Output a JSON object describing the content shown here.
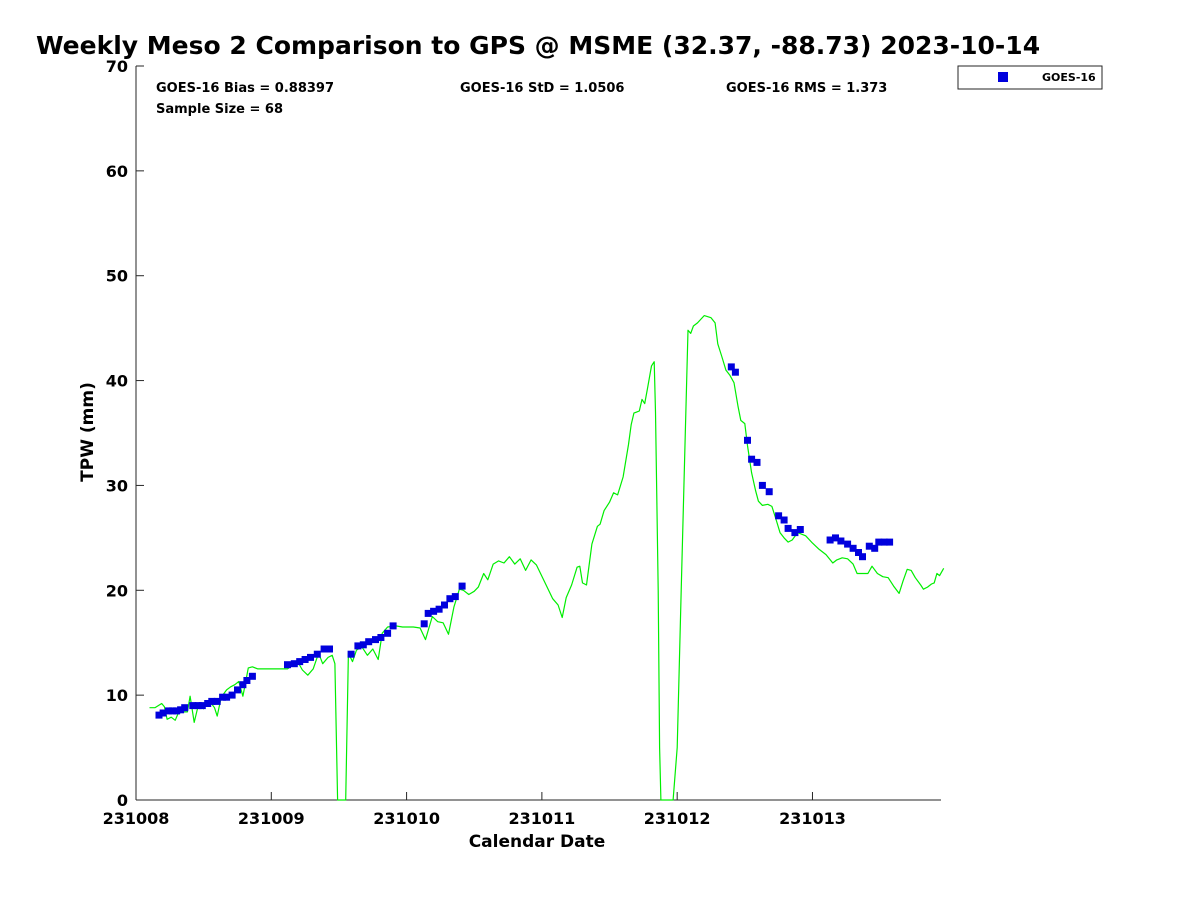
{
  "chart_data": {
    "type": "line",
    "title": "Weekly Meso 2 Comparison to GPS @ MSME (32.37, -88.73) 2023-10-14",
    "xlabel": "Calendar Date",
    "ylabel": "TPW (mm)",
    "xlim": [
      231008.0,
      231013.95
    ],
    "ylim": [
      0,
      70
    ],
    "x_ticks": [
      231008,
      231009,
      231010,
      231011,
      231012,
      231013
    ],
    "x_tick_labels": [
      "231008",
      "231009",
      "231010",
      "231011",
      "231012",
      "231013"
    ],
    "y_ticks": [
      0,
      10,
      20,
      30,
      40,
      50,
      60,
      70
    ],
    "y_tick_labels": [
      "0",
      "10",
      "20",
      "30",
      "40",
      "50",
      "60",
      "70"
    ],
    "grid": false,
    "legend_position": "top-right",
    "stats": {
      "bias": "GOES-16 Bias = 0.88397",
      "std": "GOES-16 StD = 1.0506",
      "rms": "GOES-16 RMS = 1.373",
      "sample": "Sample Size = 68"
    },
    "series": [
      {
        "name": "GOES-16",
        "kind": "scatter",
        "marker": "square",
        "color": "#0000dd",
        "points": [
          [
            231008.17,
            8.1
          ],
          [
            231008.2,
            8.3
          ],
          [
            231008.24,
            8.5
          ],
          [
            231008.27,
            8.5
          ],
          [
            231008.3,
            8.5
          ],
          [
            231008.33,
            8.6
          ],
          [
            231008.36,
            8.8
          ],
          [
            231008.42,
            9.0
          ],
          [
            231008.46,
            9.0
          ],
          [
            231008.49,
            9.0
          ],
          [
            231008.53,
            9.2
          ],
          [
            231008.56,
            9.4
          ],
          [
            231008.6,
            9.4
          ],
          [
            231008.64,
            9.8
          ],
          [
            231008.67,
            9.8
          ],
          [
            231008.71,
            10.0
          ],
          [
            231008.75,
            10.5
          ],
          [
            231008.79,
            11.0
          ],
          [
            231008.82,
            11.4
          ],
          [
            231008.86,
            11.8
          ],
          [
            231009.12,
            12.9
          ],
          [
            231009.17,
            13.0
          ],
          [
            231009.21,
            13.2
          ],
          [
            231009.25,
            13.4
          ],
          [
            231009.29,
            13.6
          ],
          [
            231009.34,
            13.9
          ],
          [
            231009.39,
            14.4
          ],
          [
            231009.43,
            14.4
          ],
          [
            231009.59,
            13.9
          ],
          [
            231009.64,
            14.7
          ],
          [
            231009.68,
            14.8
          ],
          [
            231009.72,
            15.1
          ],
          [
            231009.77,
            15.3
          ],
          [
            231009.81,
            15.5
          ],
          [
            231009.86,
            15.9
          ],
          [
            231009.9,
            16.6
          ],
          [
            231010.13,
            16.8
          ],
          [
            231010.16,
            17.8
          ],
          [
            231010.2,
            18.0
          ],
          [
            231010.24,
            18.2
          ],
          [
            231010.28,
            18.6
          ],
          [
            231010.32,
            19.2
          ],
          [
            231010.36,
            19.4
          ],
          [
            231010.41,
            20.4
          ],
          [
            231012.4,
            41.3
          ],
          [
            231012.43,
            40.8
          ],
          [
            231012.52,
            34.3
          ],
          [
            231012.55,
            32.5
          ],
          [
            231012.59,
            32.2
          ],
          [
            231012.63,
            30.0
          ],
          [
            231012.68,
            29.4
          ],
          [
            231012.75,
            27.1
          ],
          [
            231012.79,
            26.7
          ],
          [
            231012.82,
            25.9
          ],
          [
            231012.87,
            25.5
          ],
          [
            231012.91,
            25.8
          ],
          [
            231013.13,
            24.8
          ],
          [
            231013.17,
            25.0
          ],
          [
            231013.21,
            24.7
          ],
          [
            231013.26,
            24.4
          ],
          [
            231013.3,
            24.0
          ],
          [
            231013.34,
            23.6
          ],
          [
            231013.37,
            23.2
          ],
          [
            231013.42,
            24.2
          ],
          [
            231013.46,
            24.0
          ],
          [
            231013.49,
            24.6
          ],
          [
            231013.53,
            24.6
          ],
          [
            231013.57,
            24.6
          ]
        ]
      },
      {
        "name": "",
        "kind": "line",
        "color": "#00ee00",
        "points": [
          [
            231008.1,
            8.8
          ],
          [
            231008.14,
            8.8
          ],
          [
            231008.19,
            9.2
          ],
          [
            231008.21,
            8.9
          ],
          [
            231008.23,
            7.7
          ],
          [
            231008.26,
            7.9
          ],
          [
            231008.29,
            7.6
          ],
          [
            231008.31,
            8.2
          ],
          [
            231008.34,
            8.4
          ],
          [
            231008.38,
            8.4
          ],
          [
            231008.4,
            9.9
          ],
          [
            231008.43,
            7.4
          ],
          [
            231008.46,
            9.0
          ],
          [
            231008.5,
            8.7
          ],
          [
            231008.54,
            9.5
          ],
          [
            231008.58,
            8.8
          ],
          [
            231008.6,
            8.0
          ],
          [
            231008.63,
            9.8
          ],
          [
            231008.67,
            10.5
          ],
          [
            231008.7,
            10.8
          ],
          [
            231008.73,
            11.0
          ],
          [
            231008.76,
            11.3
          ],
          [
            231008.79,
            9.9
          ],
          [
            231008.83,
            12.6
          ],
          [
            231008.86,
            12.7
          ],
          [
            231008.9,
            12.5
          ],
          [
            231008.95,
            12.5
          ],
          [
            231009.0,
            12.5
          ],
          [
            231009.05,
            12.5
          ],
          [
            231009.12,
            12.5
          ],
          [
            231009.15,
            12.8
          ],
          [
            231009.19,
            13.3
          ],
          [
            231009.23,
            12.4
          ],
          [
            231009.27,
            11.9
          ],
          [
            231009.31,
            12.5
          ],
          [
            231009.35,
            14.0
          ],
          [
            231009.38,
            13.0
          ],
          [
            231009.42,
            13.6
          ],
          [
            231009.45,
            13.8
          ],
          [
            231009.47,
            13.0
          ],
          [
            231009.49,
            0
          ],
          [
            231009.55,
            0
          ],
          [
            231009.57,
            14.0
          ],
          [
            231009.6,
            13.2
          ],
          [
            231009.63,
            14.3
          ],
          [
            231009.67,
            14.6
          ],
          [
            231009.71,
            13.8
          ],
          [
            231009.75,
            14.4
          ],
          [
            231009.79,
            13.4
          ],
          [
            231009.82,
            15.9
          ],
          [
            231009.86,
            16.5
          ],
          [
            231009.92,
            16.6
          ],
          [
            231009.97,
            16.5
          ],
          [
            231010.05,
            16.5
          ],
          [
            231010.1,
            16.4
          ],
          [
            231010.14,
            15.3
          ],
          [
            231010.19,
            17.5
          ],
          [
            231010.23,
            17.0
          ],
          [
            231010.27,
            16.9
          ],
          [
            231010.31,
            15.8
          ],
          [
            231010.35,
            18.4
          ],
          [
            231010.39,
            20.1
          ],
          [
            231010.42,
            20.0
          ],
          [
            231010.46,
            19.6
          ],
          [
            231010.5,
            19.9
          ],
          [
            231010.53,
            20.3
          ],
          [
            231010.57,
            21.6
          ],
          [
            231010.6,
            21.0
          ],
          [
            231010.64,
            22.5
          ],
          [
            231010.68,
            22.8
          ],
          [
            231010.72,
            22.6
          ],
          [
            231010.76,
            23.2
          ],
          [
            231010.8,
            22.5
          ],
          [
            231010.84,
            23.0
          ],
          [
            231010.88,
            21.9
          ],
          [
            231010.92,
            22.9
          ],
          [
            231010.96,
            22.4
          ],
          [
            231011.02,
            20.8
          ],
          [
            231011.08,
            19.2
          ],
          [
            231011.12,
            18.6
          ],
          [
            231011.15,
            17.4
          ],
          [
            231011.18,
            19.3
          ],
          [
            231011.22,
            20.5
          ],
          [
            231011.26,
            22.2
          ],
          [
            231011.28,
            22.3
          ],
          [
            231011.3,
            20.7
          ],
          [
            231011.33,
            20.5
          ],
          [
            231011.37,
            24.4
          ],
          [
            231011.41,
            26.1
          ],
          [
            231011.43,
            26.3
          ],
          [
            231011.46,
            27.6
          ],
          [
            231011.5,
            28.4
          ],
          [
            231011.53,
            29.3
          ],
          [
            231011.56,
            29.1
          ],
          [
            231011.6,
            30.8
          ],
          [
            231011.64,
            33.9
          ],
          [
            231011.66,
            35.8
          ],
          [
            231011.68,
            36.9
          ],
          [
            231011.72,
            37.1
          ],
          [
            231011.74,
            38.2
          ],
          [
            231011.76,
            37.8
          ],
          [
            231011.78,
            39.2
          ],
          [
            231011.81,
            41.4
          ],
          [
            231011.83,
            41.8
          ],
          [
            231011.84,
            37.0
          ],
          [
            231011.86,
            20.0
          ],
          [
            231011.87,
            5.0
          ],
          [
            231011.88,
            0
          ],
          [
            231011.97,
            0
          ],
          [
            231012.0,
            5.0
          ],
          [
            231012.03,
            20.0
          ],
          [
            231012.06,
            35.0
          ],
          [
            231012.08,
            44.8
          ],
          [
            231012.1,
            44.5
          ],
          [
            231012.12,
            45.2
          ],
          [
            231012.15,
            45.5
          ],
          [
            231012.2,
            46.2
          ],
          [
            231012.25,
            46.0
          ],
          [
            231012.28,
            45.5
          ],
          [
            231012.3,
            43.5
          ],
          [
            231012.33,
            42.3
          ],
          [
            231012.36,
            41.0
          ],
          [
            231012.39,
            40.5
          ],
          [
            231012.42,
            39.8
          ],
          [
            231012.45,
            37.5
          ],
          [
            231012.47,
            36.2
          ],
          [
            231012.5,
            35.9
          ],
          [
            231012.52,
            33.8
          ],
          [
            231012.55,
            31.2
          ],
          [
            231012.58,
            29.5
          ],
          [
            231012.6,
            28.5
          ],
          [
            231012.63,
            28.1
          ],
          [
            231012.67,
            28.2
          ],
          [
            231012.7,
            28.0
          ],
          [
            231012.73,
            26.8
          ],
          [
            231012.76,
            25.5
          ],
          [
            231012.79,
            25.0
          ],
          [
            231012.82,
            24.6
          ],
          [
            231012.85,
            24.8
          ],
          [
            231012.89,
            25.5
          ],
          [
            231012.95,
            25.2
          ],
          [
            231013.0,
            24.5
          ],
          [
            231013.05,
            23.9
          ],
          [
            231013.1,
            23.4
          ],
          [
            231013.15,
            22.6
          ],
          [
            231013.18,
            22.9
          ],
          [
            231013.22,
            23.1
          ],
          [
            231013.26,
            23.0
          ],
          [
            231013.3,
            22.5
          ],
          [
            231013.33,
            21.6
          ],
          [
            231013.37,
            21.6
          ],
          [
            231013.41,
            21.6
          ],
          [
            231013.44,
            22.3
          ],
          [
            231013.48,
            21.6
          ],
          [
            231013.52,
            21.3
          ],
          [
            231013.56,
            21.2
          ],
          [
            231013.6,
            20.4
          ],
          [
            231013.64,
            19.7
          ],
          [
            231013.67,
            20.9
          ],
          [
            231013.7,
            22.0
          ],
          [
            231013.73,
            21.9
          ],
          [
            231013.76,
            21.2
          ],
          [
            231013.8,
            20.5
          ],
          [
            231013.82,
            20.1
          ],
          [
            231013.85,
            20.3
          ],
          [
            231013.88,
            20.6
          ],
          [
            231013.9,
            20.7
          ],
          [
            231013.92,
            21.6
          ],
          [
            231013.94,
            21.4
          ],
          [
            231013.97,
            22.1
          ]
        ]
      }
    ]
  }
}
